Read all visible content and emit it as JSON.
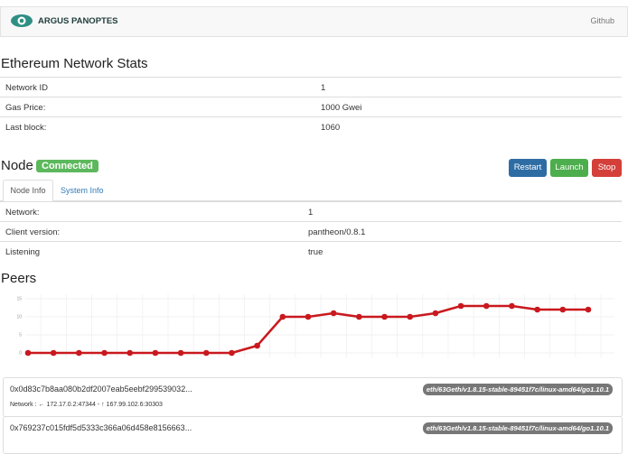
{
  "navbar": {
    "brand": "ARGUS PANOPTES",
    "link": "Github"
  },
  "network_stats": {
    "title": "Ethereum Network Stats",
    "rows": [
      [
        "Network ID",
        "1"
      ],
      [
        "Gas Price:",
        "1000 Gwei"
      ],
      [
        "Last block:",
        "1060"
      ]
    ]
  },
  "node": {
    "title": "Node",
    "status": "Connected",
    "buttons": [
      "Restart",
      "Launch",
      "Stop"
    ],
    "tabs": [
      "Node Info",
      "System Info"
    ],
    "rows": [
      [
        "Network:",
        "1"
      ],
      [
        "Client version:",
        "pantheon/0.8.1"
      ],
      [
        "Listening",
        "true"
      ]
    ]
  },
  "peers": {
    "title": "Peers",
    "list": [
      {
        "id": "0x0d83c7b8aa080b2df2007eab5eebf299539032...",
        "client": "eth/63Geth/v1.8.15-stable-89451f7c/linux-amd64/go1.10.1",
        "network": "Network : ← 172.17.0.2:47344 - ↑ 167.99.102.6:30303"
      },
      {
        "id": "0x769237c015fdf5d5333c366a06d458e8156663...",
        "client": "eth/63Geth/v1.8.15-stable-89451f7c/linux-amd64/go1.10.1"
      }
    ]
  },
  "chart_data": {
    "type": "line",
    "color": "#c9191e",
    "values": [
      0,
      0,
      0,
      0,
      0,
      0,
      0,
      0,
      0,
      2,
      10,
      10,
      11,
      10,
      10,
      10,
      11,
      13,
      13,
      13,
      12,
      12,
      12
    ],
    "ylim": [
      0,
      15
    ],
    "yticks": [
      0,
      5,
      10,
      15
    ],
    "grid": true
  }
}
